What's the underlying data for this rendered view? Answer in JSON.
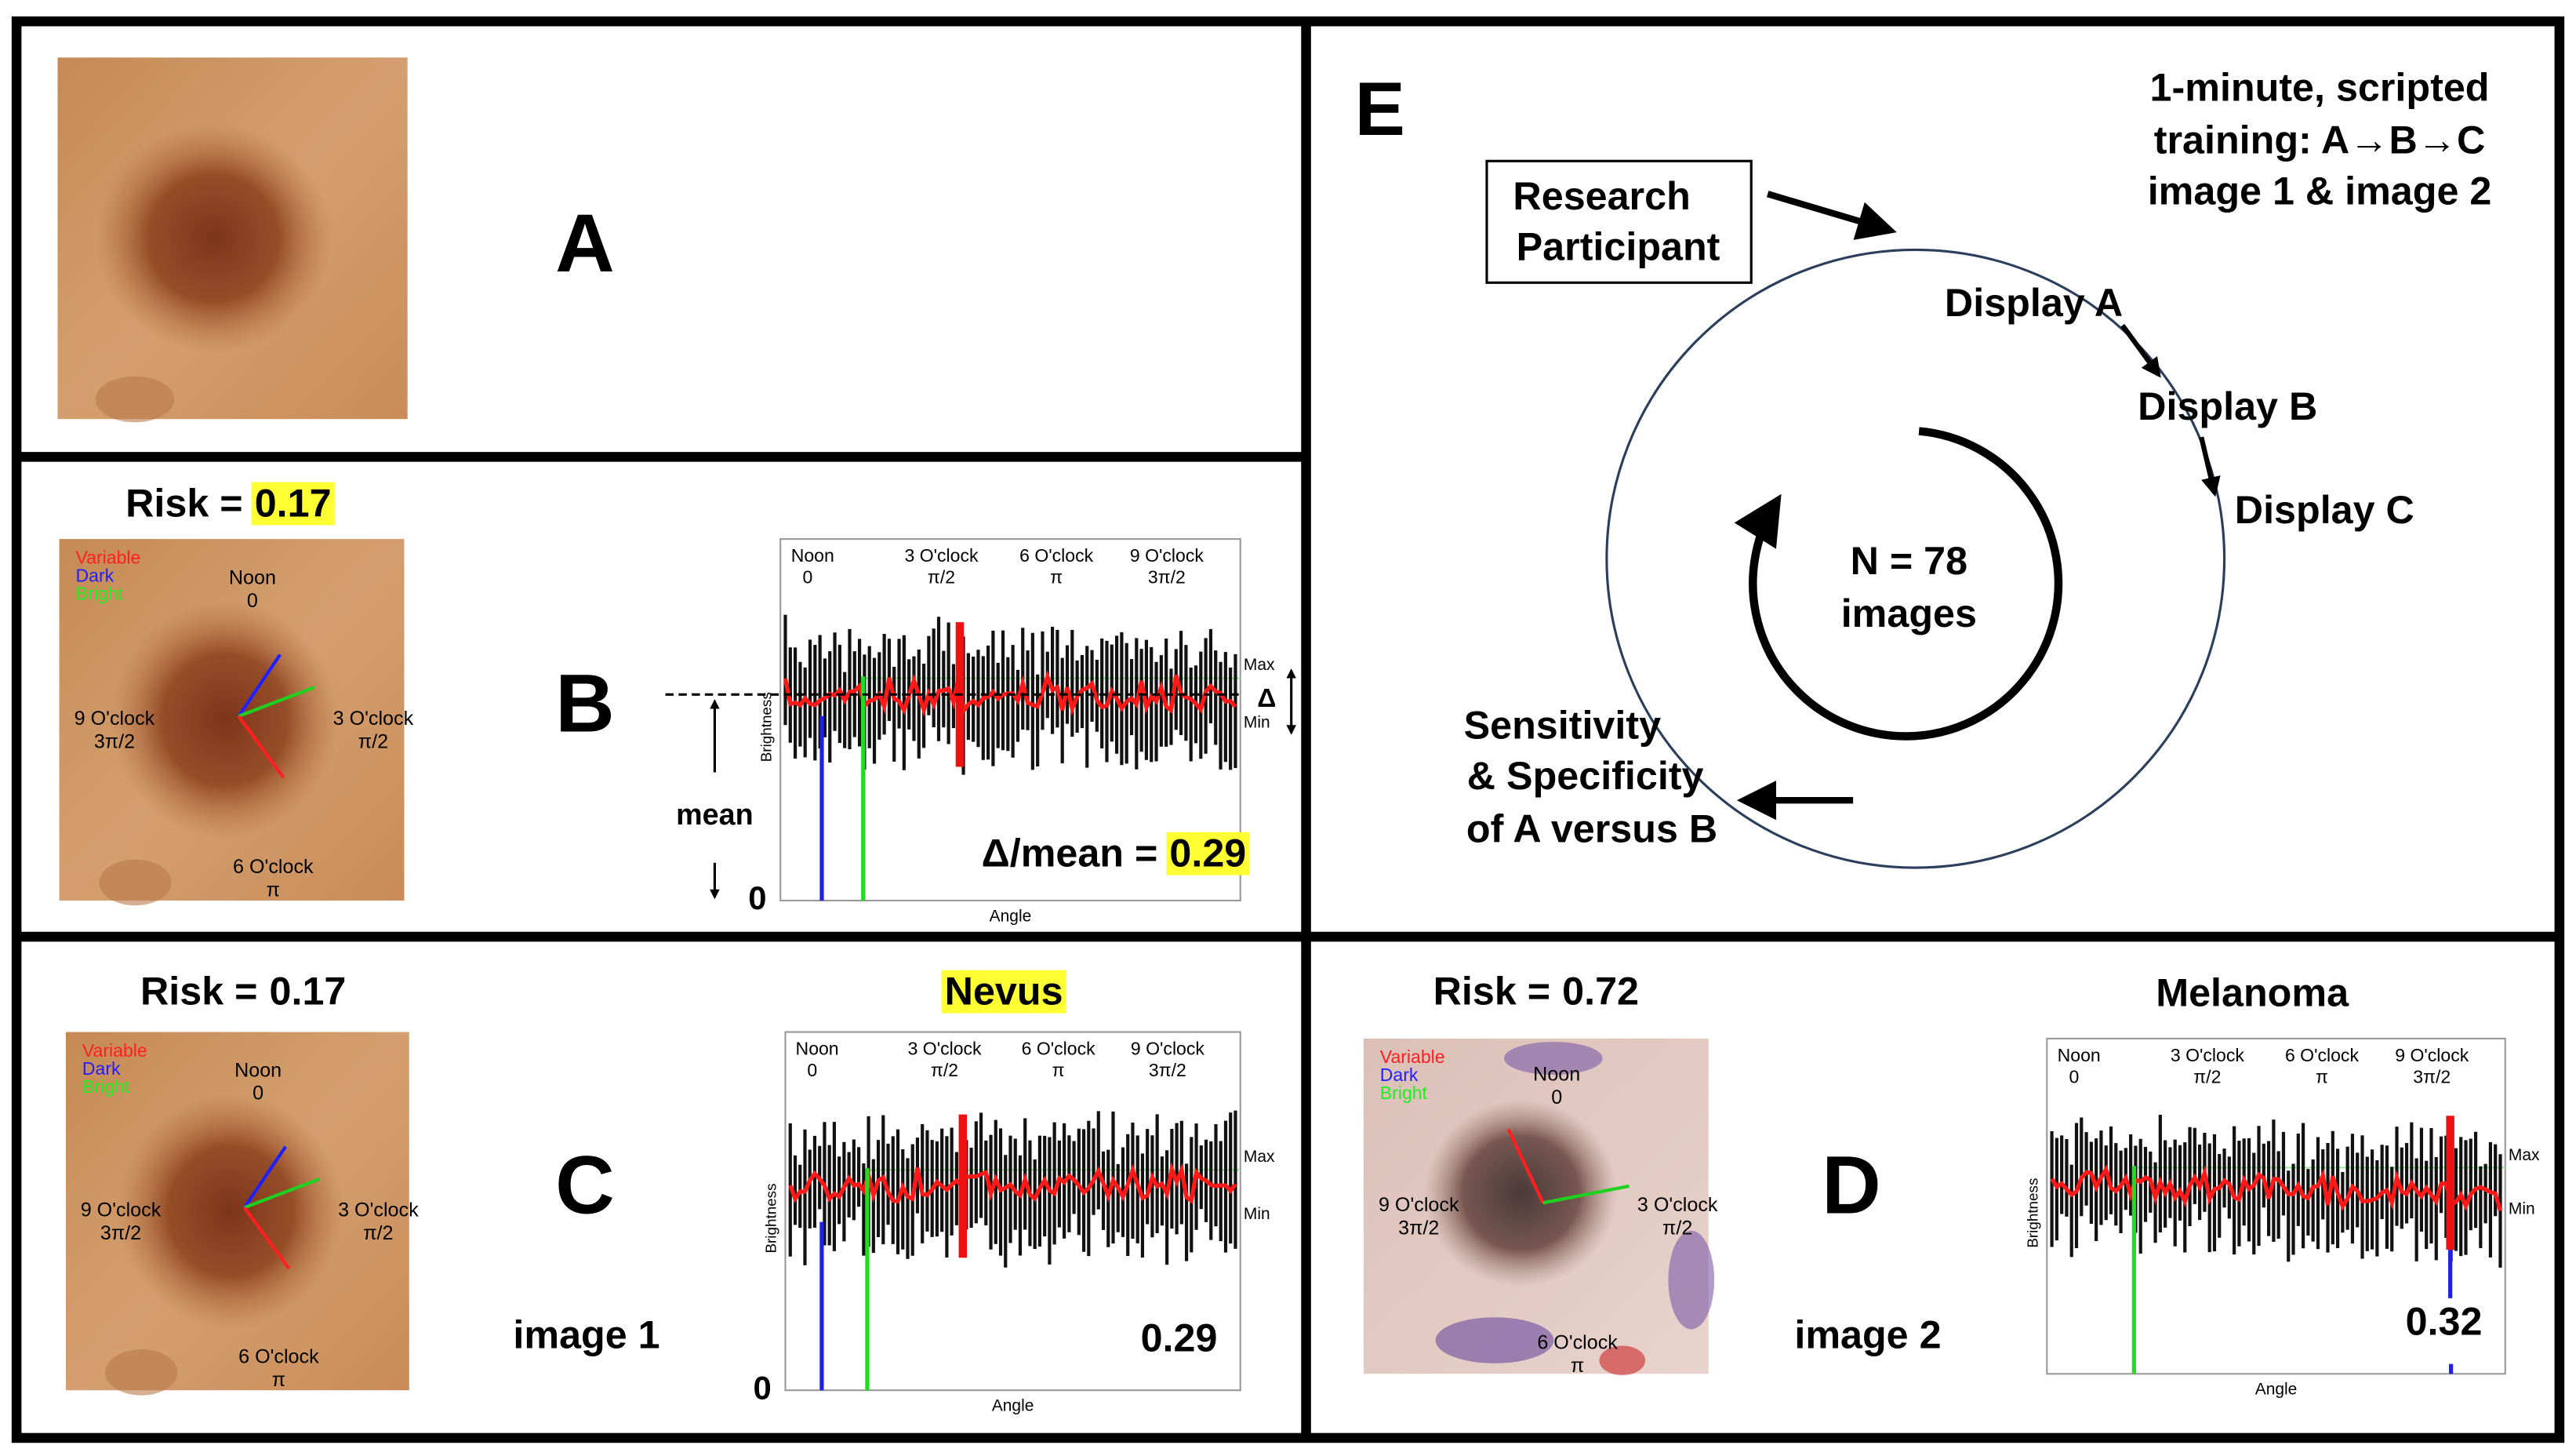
{
  "panels": {
    "a": {
      "label": "A"
    },
    "b": {
      "label": "B",
      "risk_label": "Risk =",
      "risk_value": 0.17,
      "image": {
        "legend": [
          "Variable",
          "Dark",
          "Bright"
        ],
        "noon": [
          "Noon",
          "0"
        ],
        "three": [
          "3 O'clock",
          "π/2"
        ],
        "six": [
          "6 O'clock",
          "π"
        ],
        "nine": [
          "9 O'clock",
          "3π/2"
        ]
      },
      "plot": {
        "ticks": [
          [
            "Noon",
            "0"
          ],
          [
            "3 O'clock",
            "π/2"
          ],
          [
            "6 O'clock",
            "π"
          ],
          [
            "9 O'clock",
            "3π/2"
          ]
        ],
        "max": "Max",
        "min": "Min",
        "y_label": "Brightness",
        "x_label": "Angle",
        "zero": 0
      },
      "mean_label": "mean",
      "delta_label": "Δ",
      "ratio_label": "Δ/mean =",
      "ratio_value": 0.29
    },
    "c": {
      "label": "C",
      "risk_label": "Risk =",
      "risk_value": 0.17,
      "diagnosis": "Nevus",
      "caption": "image 1",
      "image": {
        "legend": [
          "Variable",
          "Dark",
          "Bright"
        ],
        "noon": [
          "Noon",
          "0"
        ],
        "three": [
          "3 O'clock",
          "π/2"
        ],
        "six": [
          "6 O'clock",
          "π"
        ],
        "nine": [
          "9 O'clock",
          "3π/2"
        ]
      },
      "plot": {
        "ticks": [
          [
            "Noon",
            "0"
          ],
          [
            "3 O'clock",
            "π/2"
          ],
          [
            "6 O'clock",
            "π"
          ],
          [
            "9 O'clock",
            "3π/2"
          ]
        ],
        "max": "Max",
        "min": "Min",
        "y_label": "Brightness",
        "x_label": "Angle",
        "zero": 0,
        "value": 0.29
      }
    },
    "d": {
      "label": "D",
      "risk_label": "Risk =",
      "risk_value": 0.72,
      "diagnosis": "Melanoma",
      "caption": "image 2",
      "image": {
        "legend": [
          "Variable",
          "Dark",
          "Bright"
        ],
        "noon": [
          "Noon",
          "0"
        ],
        "three": [
          "3 O'clock",
          "π/2"
        ],
        "six": [
          "6 O'clock",
          "π"
        ],
        "nine": [
          "9 O'clock",
          "3π/2"
        ]
      },
      "plot": {
        "ticks": [
          [
            "Noon",
            "0"
          ],
          [
            "3 O'clock",
            "π/2"
          ],
          [
            "6 O'clock",
            "π"
          ],
          [
            "9 O'clock",
            "3π/2"
          ]
        ],
        "max": "Max",
        "min": "Min",
        "y_label": "Brightness",
        "x_label": "Angle",
        "value": 0.32
      }
    },
    "e": {
      "label": "E",
      "training": [
        "1-minute, scripted",
        "training: A→B→C",
        "image 1 & image 2"
      ],
      "participant": [
        "Research",
        "Participant"
      ],
      "steps": [
        "Display A",
        "Display B",
        "Display C"
      ],
      "center": [
        "N = 78",
        "images"
      ],
      "outcome": [
        "Sensitivity",
        "& Specificity",
        "of A versus B"
      ]
    }
  }
}
